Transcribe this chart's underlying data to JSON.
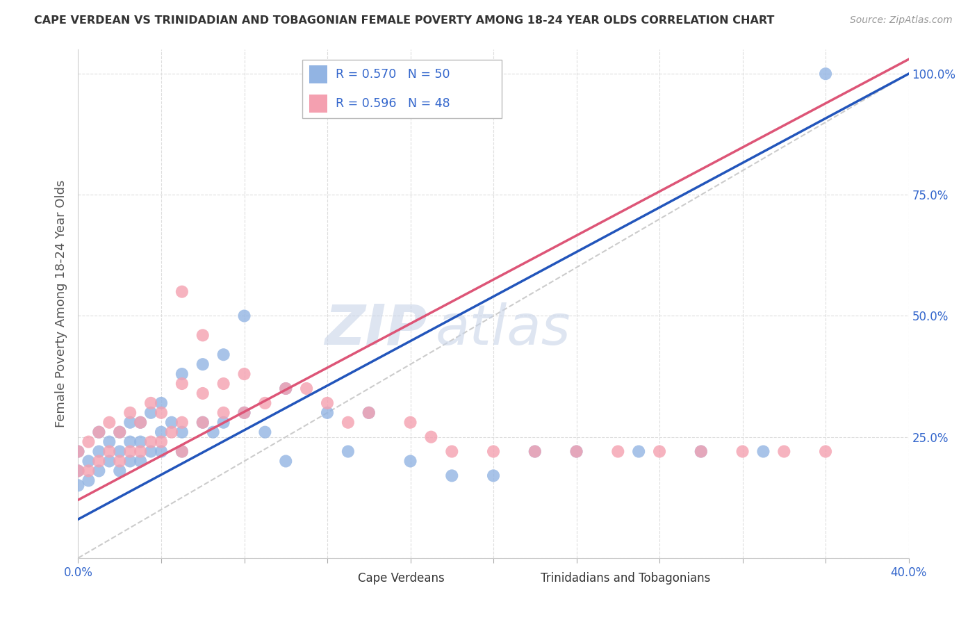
{
  "title": "CAPE VERDEAN VS TRINIDADIAN AND TOBAGONIAN FEMALE POVERTY AMONG 18-24 YEAR OLDS CORRELATION CHART",
  "source": "Source: ZipAtlas.com",
  "ylabel": "Female Poverty Among 18-24 Year Olds",
  "xlim": [
    0.0,
    0.4
  ],
  "ylim": [
    0.0,
    1.05
  ],
  "ytick_vals": [
    0.0,
    0.25,
    0.5,
    0.75,
    1.0
  ],
  "ytick_labels_right": [
    "",
    "25.0%",
    "50.0%",
    "75.0%",
    "100.0%"
  ],
  "xtick_vals": [
    0.0,
    0.04,
    0.08,
    0.12,
    0.16,
    0.2,
    0.24,
    0.28,
    0.32,
    0.36,
    0.4
  ],
  "legend_cv_label": "Cape Verdeans",
  "legend_tt_label": "Trinidadians and Tobagonians",
  "cv_R": "R = 0.570",
  "cv_N": "N = 50",
  "tt_R": "R = 0.596",
  "tt_N": "N = 48",
  "cv_color": "#92b4e3",
  "tt_color": "#f4a0b0",
  "cv_line_color": "#2255bb",
  "tt_line_color": "#dd5577",
  "ref_line_color": "#cccccc",
  "watermark_zip": "ZIP",
  "watermark_atlas": "atlas",
  "background_color": "#ffffff",
  "grid_color": "#dddddd",
  "cv_scatter_x": [
    0.0,
    0.0,
    0.0,
    0.005,
    0.005,
    0.01,
    0.01,
    0.01,
    0.015,
    0.015,
    0.02,
    0.02,
    0.02,
    0.025,
    0.025,
    0.025,
    0.03,
    0.03,
    0.03,
    0.035,
    0.035,
    0.04,
    0.04,
    0.04,
    0.045,
    0.05,
    0.05,
    0.05,
    0.06,
    0.06,
    0.065,
    0.07,
    0.07,
    0.08,
    0.08,
    0.09,
    0.1,
    0.1,
    0.12,
    0.13,
    0.14,
    0.16,
    0.18,
    0.2,
    0.22,
    0.24,
    0.27,
    0.3,
    0.33,
    0.36
  ],
  "cv_scatter_y": [
    0.15,
    0.18,
    0.22,
    0.16,
    0.2,
    0.18,
    0.22,
    0.26,
    0.2,
    0.24,
    0.18,
    0.22,
    0.26,
    0.2,
    0.24,
    0.28,
    0.2,
    0.24,
    0.28,
    0.22,
    0.3,
    0.22,
    0.26,
    0.32,
    0.28,
    0.22,
    0.26,
    0.38,
    0.28,
    0.4,
    0.26,
    0.28,
    0.42,
    0.3,
    0.5,
    0.26,
    0.2,
    0.35,
    0.3,
    0.22,
    0.3,
    0.2,
    0.17,
    0.17,
    0.22,
    0.22,
    0.22,
    0.22,
    0.22,
    1.0
  ],
  "tt_scatter_x": [
    0.0,
    0.0,
    0.005,
    0.005,
    0.01,
    0.01,
    0.015,
    0.015,
    0.02,
    0.02,
    0.025,
    0.025,
    0.03,
    0.03,
    0.035,
    0.035,
    0.04,
    0.04,
    0.045,
    0.05,
    0.05,
    0.05,
    0.06,
    0.06,
    0.07,
    0.07,
    0.08,
    0.08,
    0.09,
    0.1,
    0.11,
    0.12,
    0.13,
    0.14,
    0.16,
    0.17,
    0.18,
    0.2,
    0.22,
    0.24,
    0.26,
    0.28,
    0.3,
    0.32,
    0.34,
    0.36,
    0.05,
    0.06
  ],
  "tt_scatter_y": [
    0.18,
    0.22,
    0.18,
    0.24,
    0.2,
    0.26,
    0.22,
    0.28,
    0.2,
    0.26,
    0.22,
    0.3,
    0.22,
    0.28,
    0.24,
    0.32,
    0.24,
    0.3,
    0.26,
    0.22,
    0.28,
    0.36,
    0.28,
    0.34,
    0.3,
    0.36,
    0.3,
    0.38,
    0.32,
    0.35,
    0.35,
    0.32,
    0.28,
    0.3,
    0.28,
    0.25,
    0.22,
    0.22,
    0.22,
    0.22,
    0.22,
    0.22,
    0.22,
    0.22,
    0.22,
    0.22,
    0.55,
    0.46
  ],
  "cv_line_x": [
    0.0,
    0.4
  ],
  "cv_line_y": [
    0.08,
    1.0
  ],
  "tt_line_x": [
    0.0,
    0.4
  ],
  "tt_line_y": [
    0.12,
    1.03
  ],
  "ref_line_x": [
    0.0,
    0.4
  ],
  "ref_line_y": [
    0.0,
    1.0
  ]
}
